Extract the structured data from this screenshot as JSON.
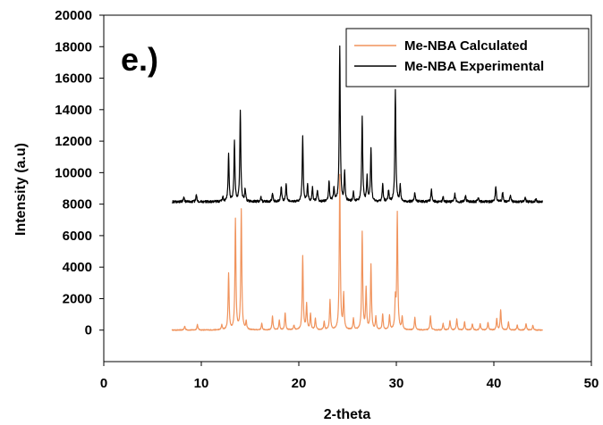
{
  "colors": {
    "calculated": "#f0935c",
    "experimental": "#000000",
    "axis": "#000000"
  },
  "chart_data": {
    "type": "line",
    "panel_label": "e.)",
    "xlabel": "2-theta",
    "ylabel": "Intensity (a.u)",
    "xlim": [
      0,
      50
    ],
    "ylim": [
      -2000,
      20000
    ],
    "x_ticks": [
      0,
      10,
      20,
      30,
      40,
      50
    ],
    "y_ticks": [
      0,
      2000,
      4000,
      6000,
      8000,
      10000,
      12000,
      14000,
      16000,
      18000,
      20000
    ],
    "legend_position": "top-right",
    "grid": false,
    "series": [
      {
        "name": "Me-NBA Calculated",
        "color": "#f0935c",
        "x_range": [
          7,
          45
        ],
        "baseline": 0,
        "peaks": [
          [
            8.3,
            250
          ],
          [
            9.6,
            350
          ],
          [
            12.1,
            300
          ],
          [
            12.8,
            3600
          ],
          [
            13.5,
            7000
          ],
          [
            14.1,
            7600
          ],
          [
            14.6,
            500
          ],
          [
            16.2,
            400
          ],
          [
            17.3,
            900
          ],
          [
            18.0,
            600
          ],
          [
            18.6,
            1100
          ],
          [
            19.5,
            300
          ],
          [
            20.4,
            4700
          ],
          [
            20.8,
            1600
          ],
          [
            21.2,
            1000
          ],
          [
            21.7,
            700
          ],
          [
            22.6,
            500
          ],
          [
            23.2,
            1900
          ],
          [
            24.2,
            9800
          ],
          [
            24.6,
            2200
          ],
          [
            25.6,
            700
          ],
          [
            26.5,
            6200
          ],
          [
            26.9,
            2600
          ],
          [
            27.4,
            4100
          ],
          [
            27.9,
            800
          ],
          [
            28.6,
            1000
          ],
          [
            29.3,
            900
          ],
          [
            29.9,
            1800
          ],
          [
            30.1,
            7400
          ],
          [
            30.6,
            800
          ],
          [
            31.9,
            800
          ],
          [
            33.5,
            900
          ],
          [
            34.8,
            400
          ],
          [
            35.5,
            600
          ],
          [
            36.2,
            700
          ],
          [
            37.0,
            500
          ],
          [
            37.8,
            400
          ],
          [
            38.6,
            400
          ],
          [
            39.4,
            500
          ],
          [
            40.3,
            700
          ],
          [
            40.7,
            1300
          ],
          [
            41.5,
            500
          ],
          [
            42.4,
            300
          ],
          [
            43.3,
            400
          ],
          [
            44.0,
            300
          ]
        ]
      },
      {
        "name": "Me-NBA Experimental",
        "color": "#000000",
        "x_range": [
          7,
          45
        ],
        "baseline": 8150,
        "peaks": [
          [
            8.2,
            300
          ],
          [
            9.5,
            450
          ],
          [
            12.2,
            300
          ],
          [
            12.8,
            3000
          ],
          [
            13.4,
            3800
          ],
          [
            14.0,
            5800
          ],
          [
            14.5,
            800
          ],
          [
            16.1,
            300
          ],
          [
            17.3,
            600
          ],
          [
            18.2,
            1000
          ],
          [
            18.7,
            1100
          ],
          [
            20.4,
            4100
          ],
          [
            20.9,
            1100
          ],
          [
            21.4,
            900
          ],
          [
            21.9,
            700
          ],
          [
            23.1,
            1300
          ],
          [
            23.6,
            900
          ],
          [
            24.2,
            9900
          ],
          [
            24.7,
            1800
          ],
          [
            25.6,
            600
          ],
          [
            26.5,
            5400
          ],
          [
            27.0,
            1600
          ],
          [
            27.4,
            3400
          ],
          [
            28.6,
            1100
          ],
          [
            29.2,
            700
          ],
          [
            29.9,
            7100
          ],
          [
            30.4,
            1000
          ],
          [
            31.9,
            600
          ],
          [
            33.6,
            800
          ],
          [
            34.8,
            300
          ],
          [
            36.0,
            500
          ],
          [
            37.1,
            400
          ],
          [
            38.4,
            300
          ],
          [
            40.2,
            1000
          ],
          [
            40.9,
            600
          ],
          [
            41.7,
            400
          ],
          [
            43.2,
            300
          ],
          [
            44.3,
            200
          ]
        ]
      }
    ]
  }
}
